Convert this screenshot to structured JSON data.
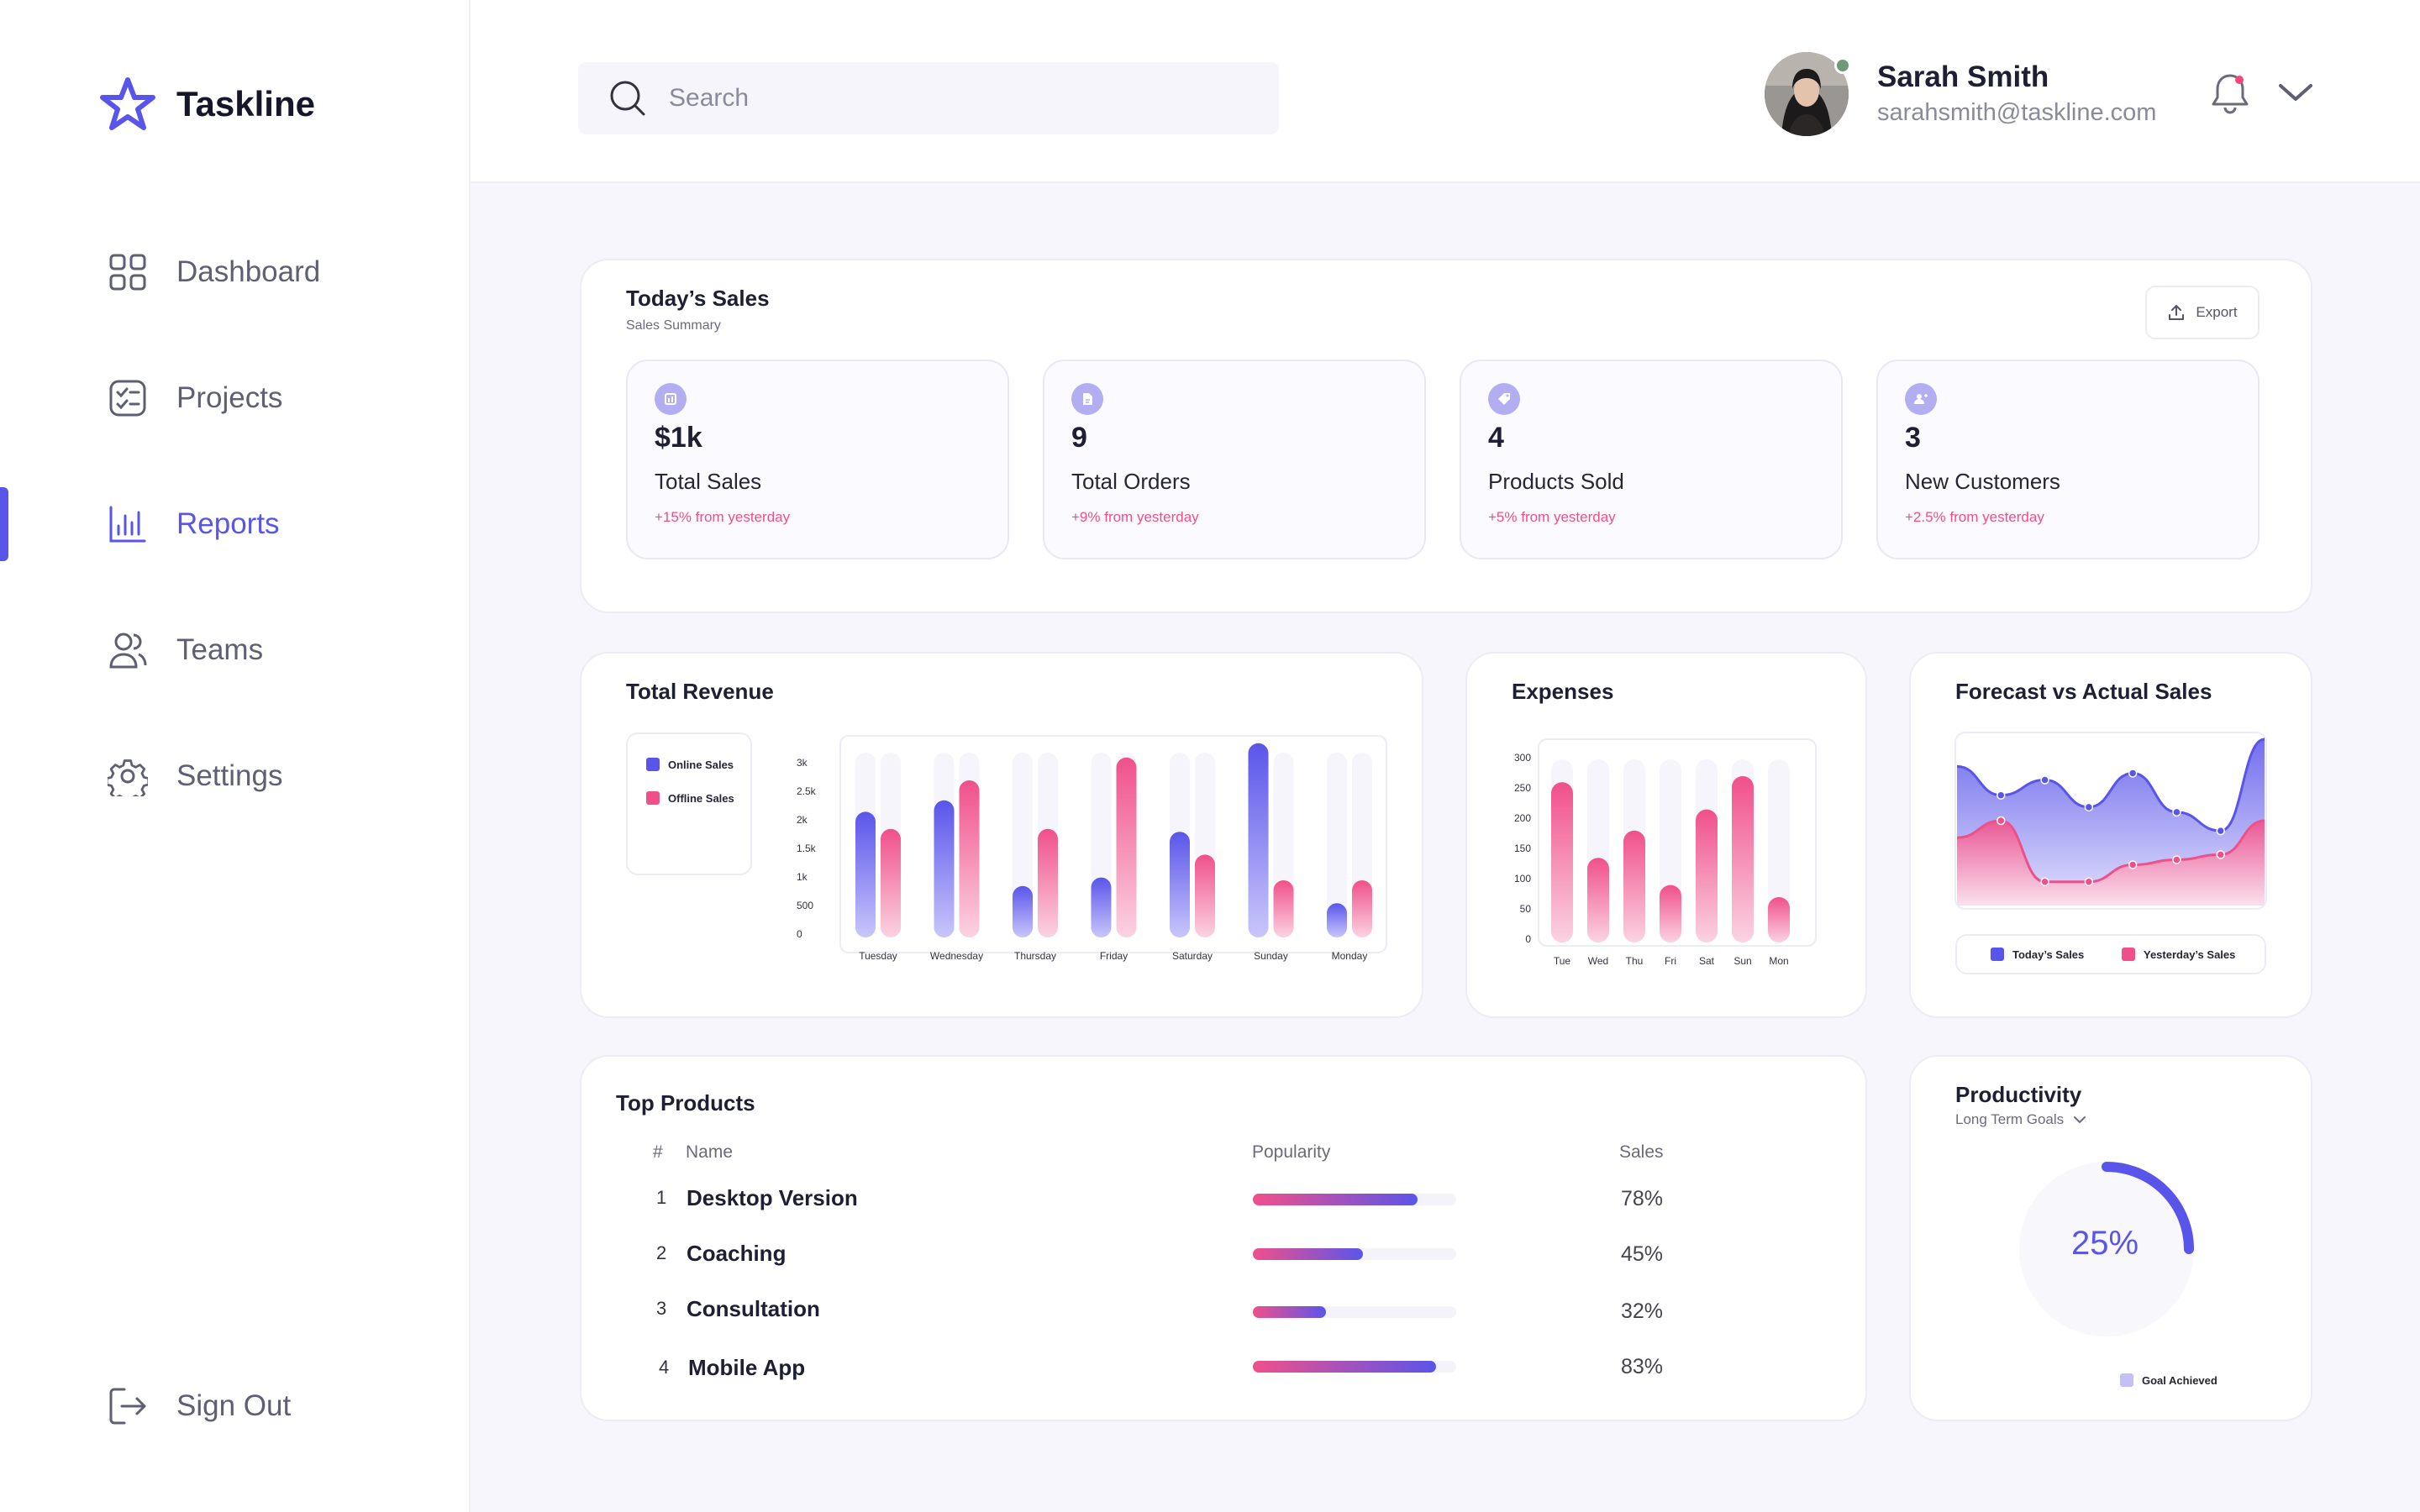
{
  "app": {
    "name": "Taskline"
  },
  "sidebar": {
    "items": [
      {
        "label": "Dashboard",
        "icon": "grid-icon",
        "active": false
      },
      {
        "label": "Projects",
        "icon": "checklist-icon",
        "active": false
      },
      {
        "label": "Reports",
        "icon": "bar-chart-icon",
        "active": true
      },
      {
        "label": "Teams",
        "icon": "users-icon",
        "active": false
      },
      {
        "label": "Settings",
        "icon": "gear-icon",
        "active": false
      }
    ],
    "signout": "Sign Out"
  },
  "header": {
    "search_placeholder": "Search",
    "user_name": "Sarah Smith",
    "user_email": "sarahsmith@taskline.com"
  },
  "sales": {
    "title": "Today’s Sales",
    "subtitle": "Sales Summary",
    "export_label": "Export",
    "stats": [
      {
        "value": "$1k",
        "label": "Total Sales",
        "change": "+15% from yesterday"
      },
      {
        "value": "9",
        "label": "Total Orders",
        "change": "+9% from yesterday"
      },
      {
        "value": "4",
        "label": "Products Sold",
        "change": "+5% from yesterday"
      },
      {
        "value": "3",
        "label": "New Customers",
        "change": "+2.5% from yesterday"
      }
    ]
  },
  "colors": {
    "accent": "#5a55ea",
    "pink": "#f0508a",
    "stat_icon": "#b3aef2"
  },
  "chart_data": [
    {
      "id": "total-revenue",
      "type": "bar",
      "title": "Total Revenue",
      "categories": [
        "Tuesday",
        "Wednesday",
        "Thursday",
        "Friday",
        "Saturday",
        "Sunday",
        "Monday"
      ],
      "yticks": [
        "3k",
        "2.5k",
        "2k",
        "1.5k",
        "1k",
        "500",
        "0"
      ],
      "ylim": [
        0,
        3500
      ],
      "series": [
        {
          "name": "Online Sales",
          "color": "#5a55ea",
          "values": [
            2200,
            2400,
            900,
            1050,
            1850,
            3400,
            600
          ]
        },
        {
          "name": "Offline Sales",
          "color": "#f0508a",
          "values": [
            1900,
            2750,
            1900,
            3150,
            1450,
            1000,
            1000
          ]
        }
      ],
      "legend": "left"
    },
    {
      "id": "expenses",
      "type": "bar",
      "title": "Expenses",
      "categories": [
        "Tue",
        "Wed",
        "Thu",
        "Fri",
        "Sat",
        "Sun",
        "Mon"
      ],
      "yticks": [
        "300",
        "250",
        "200",
        "150",
        "100",
        "50",
        "0"
      ],
      "ylim": [
        0,
        310
      ],
      "series": [
        {
          "name": "Expenses",
          "color": "#f0508a",
          "values": [
            265,
            140,
            185,
            95,
            220,
            275,
            75
          ]
        }
      ]
    },
    {
      "id": "forecast-vs-actual",
      "type": "area",
      "title": "Forecast vs Actual Sales",
      "x": [
        0,
        1,
        2,
        3,
        4,
        5,
        6,
        7
      ],
      "series": [
        {
          "name": "Today’s Sales",
          "color": "#5a55ea",
          "values": [
            82,
            65,
            74,
            58,
            78,
            55,
            44,
            98
          ]
        },
        {
          "name": "Yesterday’s Sales",
          "color": "#f0508a",
          "values": [
            40,
            50,
            14,
            14,
            24,
            27,
            30,
            50
          ]
        }
      ],
      "ylim": [
        0,
        100
      ],
      "legend": "bottom"
    },
    {
      "id": "productivity",
      "type": "pie",
      "title": "Productivity",
      "values": [
        25,
        75
      ],
      "value_label": "25%",
      "legend_label": "Goal Achieved"
    }
  ],
  "productivity": {
    "title": "Productivity",
    "dropdown": "Long Term Goals",
    "value": "25%",
    "legend": "Goal Achieved"
  },
  "top_products": {
    "title": "Top Products",
    "headers": {
      "num": "#",
      "name": "Name",
      "popularity": "Popularity",
      "sales": "Sales"
    },
    "rows": [
      {
        "num": "1",
        "name": "Desktop Version",
        "popularity": 0.81,
        "sales": "78%"
      },
      {
        "num": "2",
        "name": "Coaching",
        "popularity": 0.54,
        "sales": "45%"
      },
      {
        "num": "3",
        "name": "Consultation",
        "popularity": 0.36,
        "sales": "32%"
      },
      {
        "num": "4",
        "name": "Mobile App",
        "popularity": 0.9,
        "sales": "83%"
      }
    ]
  }
}
